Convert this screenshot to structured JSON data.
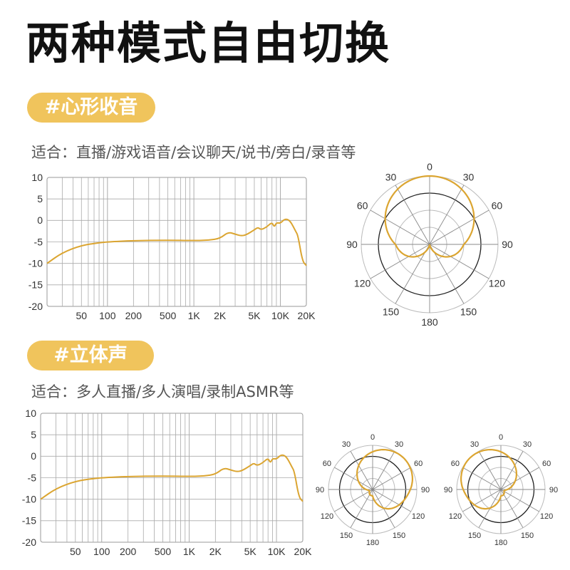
{
  "title": "两种模式自由切换",
  "sections": [
    {
      "tag": "#心形收音",
      "desc": "适合：直播/游戏语音/会议聊天/说书/旁白/录音等"
    },
    {
      "tag": "#立体声",
      "desc": "适合：多人直播/多人演唱/录制ASMR等"
    }
  ],
  "colors": {
    "accent": "#f0c45c",
    "curve": "#dba531",
    "grid": "#aaaaaa",
    "text": "#333333"
  },
  "chart_data": [
    {
      "type": "line",
      "title": "",
      "xlabel": "",
      "ylabel": "",
      "x_scale": "log",
      "xlim": [
        20,
        20000
      ],
      "ylim": [
        -20,
        10
      ],
      "y_ticks": [
        10,
        5,
        0,
        -5,
        -10,
        -15,
        -20
      ],
      "x_ticks": [
        {
          "v": 50,
          "label": "50"
        },
        {
          "v": 100,
          "label": "100"
        },
        {
          "v": 200,
          "label": "200"
        },
        {
          "v": 500,
          "label": "500"
        },
        {
          "v": 1000,
          "label": "1K"
        },
        {
          "v": 2000,
          "label": "2K"
        },
        {
          "v": 5000,
          "label": "5K"
        },
        {
          "v": 10000,
          "label": "10K"
        },
        {
          "v": 20000,
          "label": "20K"
        }
      ],
      "series": [
        {
          "x": [
            20,
            30,
            50,
            80,
            100,
            200,
            500,
            1000,
            1500,
            2000,
            2500,
            3000,
            3500,
            4000,
            5000,
            5500,
            6000,
            7000,
            8000,
            8500,
            9000,
            10000,
            11000,
            12000,
            13000,
            14000,
            15000,
            16000,
            18000,
            20000
          ],
          "y": [
            -10,
            -7.5,
            -5.8,
            -5.2,
            -5,
            -4.7,
            -4.6,
            -4.7,
            -4.6,
            -4.2,
            -2.7,
            -3.2,
            -3.6,
            -3.4,
            -2.2,
            -1.6,
            -2.2,
            -1.5,
            -0.4,
            -1.6,
            -0.5,
            -0.7,
            0.2,
            0.3,
            -0.2,
            -1.3,
            -2.5,
            -3.5,
            -9.5,
            -10.5
          ]
        }
      ]
    },
    {
      "type": "polar",
      "title": "",
      "angle_ticks": [
        {
          "a": 0,
          "label": "0"
        },
        {
          "a": 30,
          "label": "30"
        },
        {
          "a": -30,
          "label": "30"
        },
        {
          "a": 60,
          "label": "60"
        },
        {
          "a": -60,
          "label": "60"
        },
        {
          "a": 90,
          "label": "90"
        },
        {
          "a": -90,
          "label": "90"
        },
        {
          "a": 120,
          "label": "120"
        },
        {
          "a": -120,
          "label": "120"
        },
        {
          "a": 150,
          "label": "150"
        },
        {
          "a": -150,
          "label": "150"
        },
        {
          "a": 180,
          "label": "180"
        }
      ],
      "pattern": "cardioid"
    },
    {
      "type": "line",
      "title": "",
      "xlabel": "",
      "ylabel": "",
      "x_scale": "log",
      "xlim": [
        20,
        20000
      ],
      "ylim": [
        -20,
        10
      ],
      "y_ticks": [
        10,
        5,
        0,
        -5,
        -10,
        -15,
        -20
      ],
      "x_ticks": [
        {
          "v": 50,
          "label": "50"
        },
        {
          "v": 100,
          "label": "100"
        },
        {
          "v": 200,
          "label": "200"
        },
        {
          "v": 500,
          "label": "500"
        },
        {
          "v": 1000,
          "label": "1K"
        },
        {
          "v": 2000,
          "label": "2K"
        },
        {
          "v": 5000,
          "label": "5K"
        },
        {
          "v": 10000,
          "label": "10K"
        },
        {
          "v": 20000,
          "label": "20K"
        }
      ],
      "series": [
        {
          "x": [
            20,
            30,
            50,
            80,
            100,
            200,
            500,
            1000,
            1500,
            2000,
            2500,
            3000,
            3500,
            4000,
            5000,
            5500,
            6000,
            7000,
            8000,
            8500,
            9000,
            10000,
            11000,
            12000,
            13000,
            14000,
            15000,
            16000,
            18000,
            20000
          ],
          "y": [
            -10,
            -7.5,
            -5.8,
            -5.2,
            -5,
            -4.7,
            -4.6,
            -4.7,
            -4.6,
            -4.2,
            -2.7,
            -3.2,
            -3.6,
            -3.4,
            -2.2,
            -1.6,
            -2.2,
            -1.5,
            -0.4,
            -1.6,
            -0.5,
            -0.7,
            0.2,
            0.3,
            -0.2,
            -1.3,
            -2.5,
            -3.5,
            -9.5,
            -10.5
          ]
        }
      ]
    },
    {
      "type": "polar",
      "title": "",
      "angle_ticks": [
        {
          "a": 0,
          "label": "0"
        },
        {
          "a": 30,
          "label": "30"
        },
        {
          "a": -30,
          "label": "30"
        },
        {
          "a": 60,
          "label": "60"
        },
        {
          "a": -60,
          "label": "60"
        },
        {
          "a": 90,
          "label": "90"
        },
        {
          "a": -90,
          "label": "90"
        },
        {
          "a": 120,
          "label": "120"
        },
        {
          "a": -120,
          "label": "120"
        },
        {
          "a": 150,
          "label": "150"
        },
        {
          "a": -150,
          "label": "150"
        },
        {
          "a": 180,
          "label": "180"
        }
      ],
      "pattern": "stereo-right"
    },
    {
      "type": "polar",
      "title": "",
      "angle_ticks": [
        {
          "a": 0,
          "label": "0"
        },
        {
          "a": 30,
          "label": "30"
        },
        {
          "a": -30,
          "label": "30"
        },
        {
          "a": 60,
          "label": "60"
        },
        {
          "a": -60,
          "label": "60"
        },
        {
          "a": 90,
          "label": "90"
        },
        {
          "a": -90,
          "label": "90"
        },
        {
          "a": 120,
          "label": "120"
        },
        {
          "a": -120,
          "label": "120"
        },
        {
          "a": 150,
          "label": "150"
        },
        {
          "a": -150,
          "label": "150"
        },
        {
          "a": 180,
          "label": "180"
        }
      ],
      "pattern": "stereo-left"
    }
  ]
}
